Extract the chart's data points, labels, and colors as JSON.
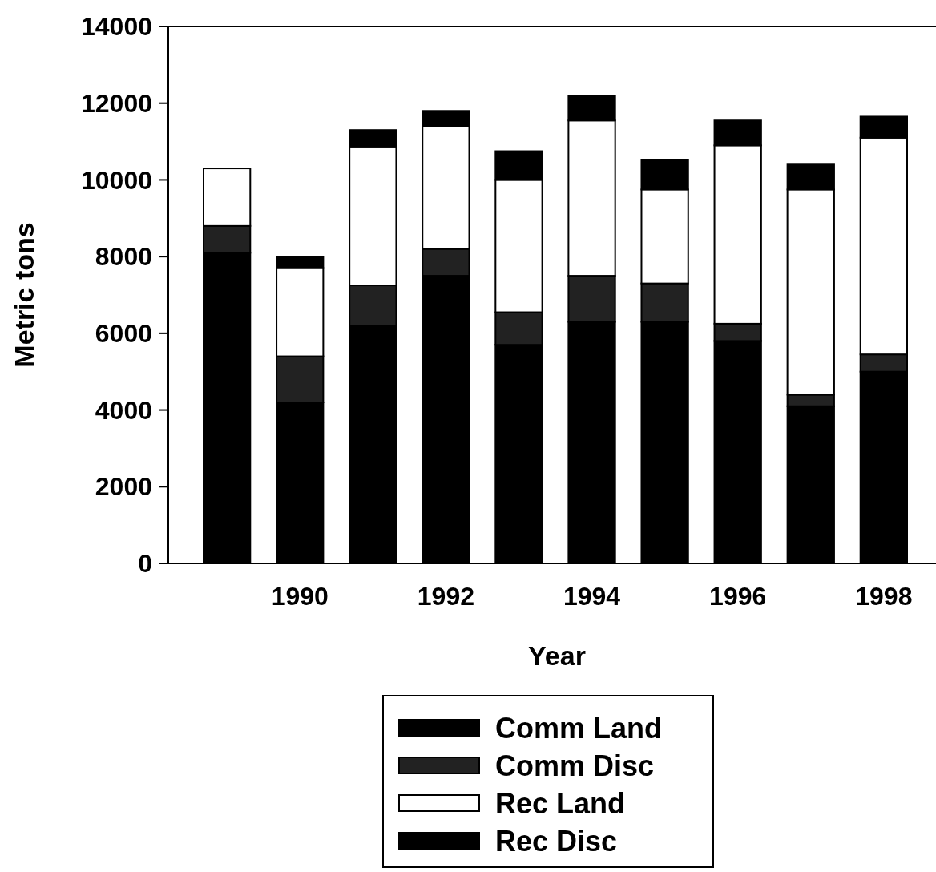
{
  "chart_data": {
    "type": "bar",
    "stacked": true,
    "xlabel": "Year",
    "ylabel": "Metric tons",
    "categories": [
      null,
      "1990",
      null,
      "1992",
      null,
      "1994",
      null,
      "1996",
      null,
      "1998"
    ],
    "series": [
      {
        "name": "Comm Land",
        "color": "#000000",
        "values": [
          8100,
          4200,
          6200,
          7500,
          5700,
          6300,
          6300,
          5800,
          4100,
          5000
        ]
      },
      {
        "name": "Comm Disc",
        "color": "#222222",
        "values": [
          700,
          1200,
          1050,
          700,
          850,
          1200,
          1000,
          450,
          300,
          450
        ]
      },
      {
        "name": "Rec Land",
        "color": "#ffffff",
        "values": [
          1500,
          2300,
          3600,
          3200,
          3450,
          4050,
          2450,
          4650,
          5350,
          5650
        ]
      },
      {
        "name": "Rec Disc",
        "color": "#000000",
        "values": [
          0,
          300,
          450,
          400,
          750,
          650,
          770,
          650,
          650,
          550
        ]
      }
    ],
    "ylim": [
      0,
      14000
    ],
    "yticks": [
      0,
      2000,
      4000,
      6000,
      8000,
      10000,
      12000,
      14000
    ],
    "legend": "bottom"
  }
}
